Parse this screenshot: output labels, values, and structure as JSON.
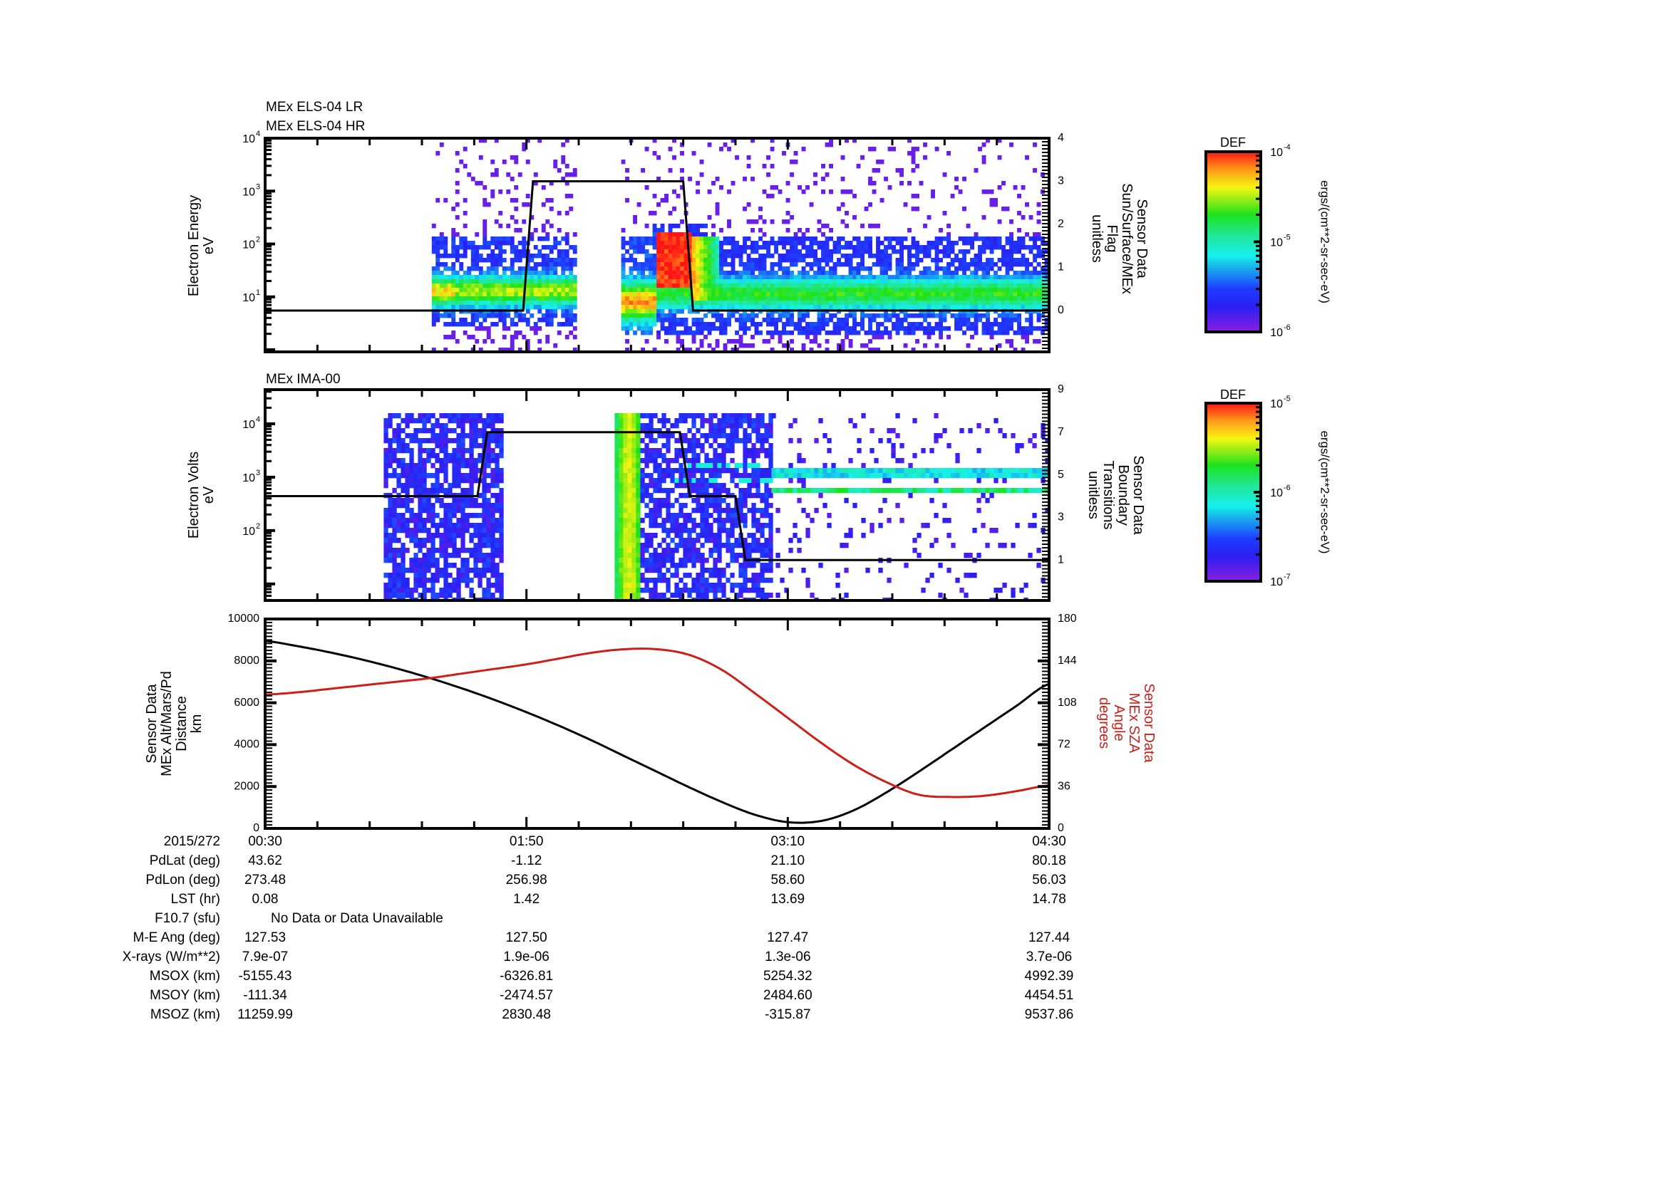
{
  "panels": [
    {
      "id": "els",
      "titles": [
        "MEx ELS-04 LR",
        "MEx ELS-04 HR"
      ],
      "ylabel": [
        "Electron Energy",
        "eV"
      ],
      "yscale": "log",
      "ylim_log10": [
        -0.04,
        4
      ],
      "yticks": [
        {
          "exp": "4",
          "v": 4
        },
        {
          "exp": "3",
          "v": 3
        },
        {
          "exp": "2",
          "v": 2
        },
        {
          "exp": "1",
          "v": 1
        }
      ],
      "right_axis": {
        "label": [
          "Sensor Data",
          "Sun/Surface/MEx",
          "Flag",
          "unitless"
        ],
        "lim": [
          -0.96,
          4
        ],
        "ticks": [
          "4",
          "3",
          "2",
          "1",
          "0"
        ]
      },
      "colorbar": {
        "title": "DEF",
        "ticks": [
          "-4",
          "-5",
          "-6"
        ],
        "unit": "ergs/(cm**2-sr-sec-eV)"
      }
    },
    {
      "id": "ima",
      "titles": [
        "MEx IMA-00"
      ],
      "ylabel": [
        "Electron Volts",
        "eV"
      ],
      "yscale": "log",
      "ylim_log10": [
        0.69,
        4.64
      ],
      "yticks": [
        {
          "exp": "4",
          "v": 4
        },
        {
          "exp": "3",
          "v": 3
        },
        {
          "exp": "2",
          "v": 2
        }
      ],
      "right_axis": {
        "label": [
          "Sensor Data",
          "Boundary",
          "Transitions",
          "unitless"
        ],
        "lim": [
          -0.9,
          9
        ],
        "ticks": [
          "9",
          "7",
          "5",
          "3",
          "1"
        ]
      },
      "colorbar": {
        "title": "DEF",
        "ticks": [
          "-5",
          "-6",
          "-7"
        ],
        "unit": "ergs/(cm**2-sr-sec-eV)"
      }
    },
    {
      "id": "orbit",
      "ylabel": [
        "Sensor Data",
        "MEx Alt/Mars/Pd",
        "Distance",
        "km"
      ],
      "yticks": [
        "10000",
        "8000",
        "6000",
        "4000",
        "2000",
        "0"
      ],
      "right_axis": {
        "label": [
          "Sensor Data",
          "MEx SZA",
          "Angle",
          "degrees"
        ],
        "ticks": [
          "180",
          "144",
          "108",
          "72",
          "36",
          "0"
        ],
        "color": "#cc1f1a"
      }
    }
  ],
  "chart_data": [
    {
      "type": "heatmap",
      "title": "MEx ELS-04 LR / MEx ELS-04 HR",
      "xlabel": "UT (2015/272)",
      "ylabel": "Electron Energy (eV)",
      "y_range_eV": [
        1,
        10000
      ],
      "colorbar": {
        "label": "DEF ergs/(cm**2-sr-sec-eV)",
        "range": [
          1e-06,
          0.0001
        ]
      },
      "data_intervals_minutes": [
        [
          51,
          95
        ],
        [
          109,
          240
        ]
      ],
      "notable": "Intense red peak (~1e-4) from ~01:58 to 02:15 between ~20-200 eV; steady green band ~5-30 eV",
      "overlay_series": {
        "name": "Sun/Surface/MEx Flag",
        "x_minutes": [
          0,
          79,
          82,
          128,
          131,
          240
        ],
        "values": [
          0,
          0,
          3,
          3,
          0,
          0
        ]
      }
    },
    {
      "type": "heatmap",
      "title": "MEx IMA-00",
      "xlabel": "UT (2015/272)",
      "ylabel": "Electron Volts (eV)",
      "y_range_eV": [
        5,
        43000
      ],
      "colorbar": {
        "label": "DEF ergs/(cm**2-sr-sec-eV)",
        "range": [
          1e-07,
          1e-05
        ]
      },
      "data_intervals_minutes": [
        [
          36,
          72
        ],
        [
          109,
          155
        ],
        [
          155,
          240
        ]
      ],
      "notable": "Broadband green/yellow column ~01:58-02:06; narrow bands ~700 eV and ~1500 eV after 02:50",
      "overlay_series": {
        "name": "Boundary Transitions",
        "x_minutes": [
          0,
          65,
          68,
          127,
          130,
          144,
          147,
          240
        ],
        "values": [
          4,
          4,
          7,
          7,
          4,
          4,
          1,
          1
        ]
      }
    },
    {
      "type": "line",
      "title": "",
      "x_tick_labels": [
        "00:30",
        "01:50",
        "03:10",
        "04:30"
      ],
      "x_minutes": [
        0,
        10,
        20,
        30,
        40,
        50,
        60,
        70,
        80,
        90,
        100,
        110,
        120,
        130,
        140,
        150,
        160,
        170,
        180,
        190,
        200,
        210,
        220,
        230,
        240
      ],
      "series": [
        {
          "name": "MEx Alt/Mars/Pd Distance (km)",
          "axis": "left",
          "color": "#000000",
          "values": [
            8950,
            8700,
            8400,
            8050,
            7650,
            7200,
            6700,
            6150,
            5550,
            4900,
            4200,
            3450,
            2700,
            1950,
            1250,
            650,
            300,
            350,
            850,
            1700,
            2700,
            3750,
            4800,
            5850,
            6900
          ]
        },
        {
          "name": "MEx SZA Angle (degrees)",
          "axis": "right",
          "color": "#cc1f1a",
          "values": [
            115,
            117,
            120,
            123,
            126,
            129,
            133,
            137,
            141,
            146,
            151,
            154,
            154,
            149,
            136,
            116,
            95,
            74,
            55,
            40,
            29,
            27,
            28,
            32,
            37
          ]
        }
      ],
      "ylim_left": [
        0,
        10000
      ],
      "ylim_right": [
        0,
        180
      ],
      "ylabel_left": "Sensor Data MEx Alt/Mars/Pd Distance km",
      "ylabel_right": "Sensor Data MEx SZA Angle degrees",
      "grid": false
    }
  ],
  "ephemeris": {
    "header_label": "2015/272",
    "times": [
      "00:30",
      "01:50",
      "03:10",
      "04:30"
    ],
    "rows": [
      {
        "label": "PdLat (deg)",
        "values": [
          "43.62",
          "-1.12",
          "21.10",
          "80.18"
        ]
      },
      {
        "label": "PdLon (deg)",
        "values": [
          "273.48",
          "256.98",
          "58.60",
          "56.03"
        ]
      },
      {
        "label": "LST (hr)",
        "values": [
          "0.08",
          "1.42",
          "13.69",
          "14.78"
        ]
      },
      {
        "label": "F10.7 (sfu)",
        "note": "No Data or Data Unavailable"
      },
      {
        "label": "M-E Ang (deg)",
        "values": [
          "127.53",
          "127.50",
          "127.47",
          "127.44"
        ]
      },
      {
        "label": "X-rays (W/m**2)",
        "values": [
          "7.9e-07",
          "1.9e-06",
          "1.3e-06",
          "3.7e-06"
        ]
      },
      {
        "label": "MSOX (km)",
        "values": [
          "-5155.43",
          "-6326.81",
          "5254.32",
          "4992.39"
        ]
      },
      {
        "label": "MSOY (km)",
        "values": [
          "-111.34",
          "-2474.57",
          "2484.60",
          "4454.51"
        ]
      },
      {
        "label": "MSOZ (km)",
        "values": [
          "11259.99",
          "2830.48",
          "-315.87",
          "9537.86"
        ]
      }
    ]
  }
}
